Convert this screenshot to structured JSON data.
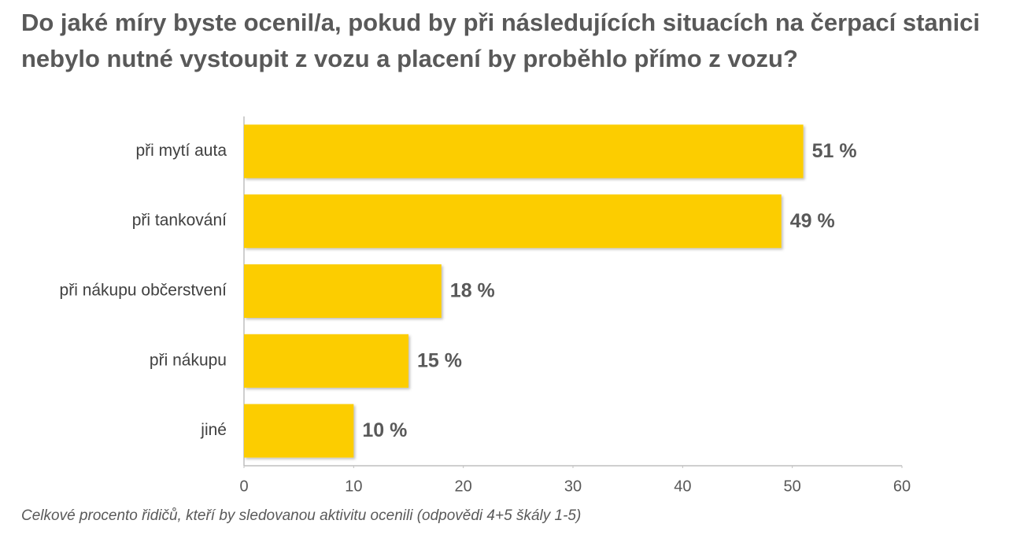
{
  "chart_data": {
    "type": "bar",
    "orientation": "horizontal",
    "title": "Do jaké míry byste ocenil/a, pokud by při následujících situacích na čerpací stanici nebylo nutné vystoupit z vozu a placení by proběhlo přímo z vozu?",
    "categories": [
      "při mytí auta",
      "při tankování",
      "při nákupu občerstvení",
      "při nákupu",
      "jiné"
    ],
    "values": [
      51,
      49,
      18,
      15,
      10
    ],
    "value_labels": [
      "51 %",
      "49 %",
      "18 %",
      "15 %",
      "10 %"
    ],
    "color": "#fccd00",
    "xlim": [
      0,
      60
    ],
    "xticks": [
      0,
      10,
      20,
      30,
      40,
      50,
      60
    ],
    "grid": false,
    "note": "Celkové procento řidičů, kteří by sledovanou aktivitu ocenili (odpovědi 4+5 škály 1-5)"
  }
}
